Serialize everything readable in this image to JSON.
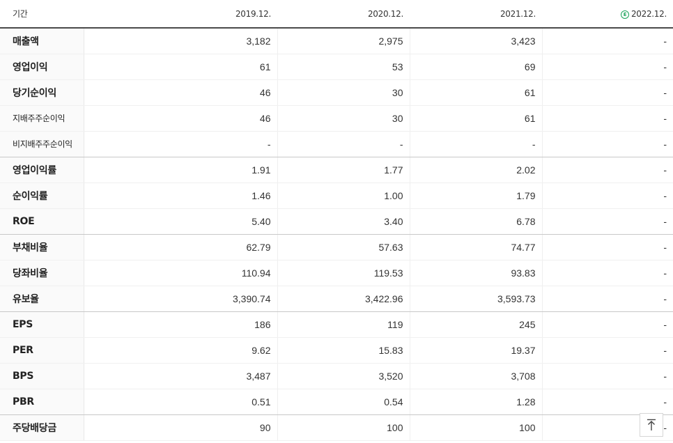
{
  "header": {
    "label": "기간",
    "periods": [
      "2019.12.",
      "2020.12.",
      "2021.12.",
      "2022.12."
    ],
    "estimate_badge": "E"
  },
  "rows": [
    {
      "label": "매출액",
      "values": [
        "3,182",
        "2,975",
        "3,423",
        "-"
      ]
    },
    {
      "label": "영업이익",
      "values": [
        "61",
        "53",
        "69",
        "-"
      ]
    },
    {
      "label": "당기순이익",
      "values": [
        "46",
        "30",
        "61",
        "-"
      ]
    },
    {
      "label": "지배주주순이익",
      "values": [
        "46",
        "30",
        "61",
        "-"
      ]
    },
    {
      "label": "비지배주주순이익",
      "values": [
        "-",
        "-",
        "-",
        "-"
      ]
    },
    {
      "label": "영업이익률",
      "values": [
        "1.91",
        "1.77",
        "2.02",
        "-"
      ]
    },
    {
      "label": "순이익률",
      "values": [
        "1.46",
        "1.00",
        "1.79",
        "-"
      ]
    },
    {
      "label": "ROE",
      "values": [
        "5.40",
        "3.40",
        "6.78",
        "-"
      ]
    },
    {
      "label": "부채비율",
      "values": [
        "62.79",
        "57.63",
        "74.77",
        "-"
      ]
    },
    {
      "label": "당좌비율",
      "values": [
        "110.94",
        "119.53",
        "93.83",
        "-"
      ]
    },
    {
      "label": "유보율",
      "values": [
        "3,390.74",
        "3,422.96",
        "3,593.73",
        "-"
      ]
    },
    {
      "label": "EPS",
      "values": [
        "186",
        "119",
        "245",
        "-"
      ]
    },
    {
      "label": "PER",
      "values": [
        "9.62",
        "15.83",
        "19.37",
        "-"
      ]
    },
    {
      "label": "BPS",
      "values": [
        "3,487",
        "3,520",
        "3,708",
        "-"
      ]
    },
    {
      "label": "PBR",
      "values": [
        "0.51",
        "0.54",
        "1.28",
        "-"
      ]
    },
    {
      "label": "주당배당금",
      "values": [
        "90",
        "100",
        "100",
        "-"
      ]
    }
  ],
  "scroll_top_icon": "arrow-up-icon"
}
